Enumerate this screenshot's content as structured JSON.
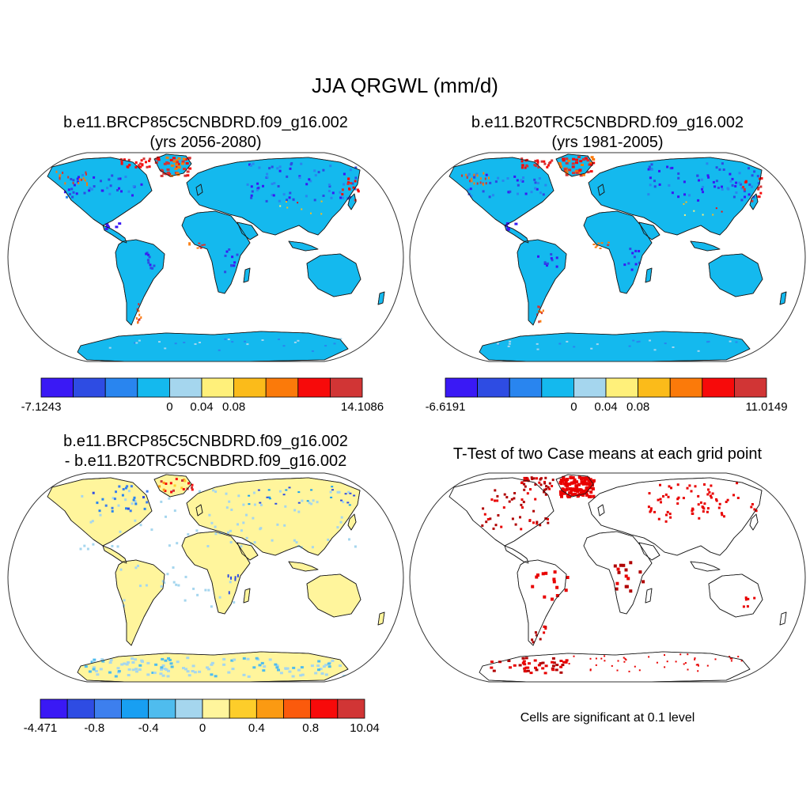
{
  "title": "JJA QRGWL (mm/d)",
  "panels": [
    {
      "title_line1": "b.e11.BRCP85C5CNBDRD.f09_g16.002",
      "title_line2": "(yrs 2056-2080)",
      "land_fill": "#14b9ee",
      "colorbar": {
        "colors": [
          "#3a19f5",
          "#2e4ce3",
          "#2985ef",
          "#14b9ee",
          "#a5d6ee",
          "#fff07a",
          "#fbbb1a",
          "#fb7a0a",
          "#f70a0a",
          "#d13535"
        ],
        "labels": [
          "-7.1243",
          "0",
          "0.04",
          "0.08",
          "14.1086"
        ],
        "label_boundary_index": [
          0,
          4,
          5,
          6,
          10
        ]
      }
    },
    {
      "title_line1": "b.e11.B20TRC5CNBDRD.f09_g16.002",
      "title_line2": "(yrs 1981-2005)",
      "land_fill": "#14b9ee",
      "colorbar": {
        "colors": [
          "#3a19f5",
          "#2e4ce3",
          "#2985ef",
          "#14b9ee",
          "#a5d6ee",
          "#fff07a",
          "#fbbb1a",
          "#fb7a0a",
          "#f70a0a",
          "#d13535"
        ],
        "labels": [
          "-6.6191",
          "0",
          "0.04",
          "0.08",
          "11.0149"
        ],
        "label_boundary_index": [
          0,
          4,
          5,
          6,
          10
        ]
      }
    },
    {
      "title_line1": "b.e11.BRCP85C5CNBDRD.f09_g16.002",
      "title_line2": "- b.e11.B20TRC5CNBDRD.f09_g16.002",
      "land_fill": "#fff59c",
      "colorbar": {
        "colors": [
          "#3a19f5",
          "#2e4ce3",
          "#3d7fee",
          "#189ff2",
          "#4fbcee",
          "#a5d6ee",
          "#fff59c",
          "#fdcd2a",
          "#fb9a12",
          "#fb5a0c",
          "#f70a0a",
          "#d13535"
        ],
        "labels": [
          "-4.471",
          "-0.8",
          "-0.4",
          "0",
          "0.4",
          "0.8",
          "10.04"
        ],
        "label_boundary_index": [
          0,
          2,
          4,
          6,
          8,
          10,
          12
        ]
      }
    },
    {
      "title_line1": "T-Test of two Case means at each grid point",
      "note": "Cells are significant at 0.1 level",
      "land_fill": "#ffffff",
      "significant_color": "#e80000"
    }
  ]
}
